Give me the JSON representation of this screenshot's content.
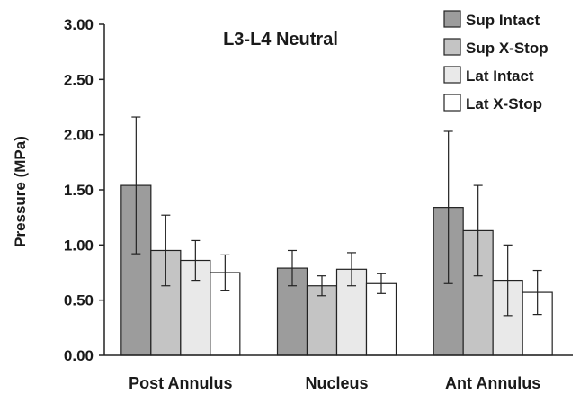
{
  "chart_data": {
    "type": "bar",
    "title": "L3-L4 Neutral",
    "xlabel": "",
    "ylabel": "Pressure (MPa)",
    "ylim": [
      0,
      3
    ],
    "yticks": [
      "0.00",
      "0.50",
      "1.00",
      "1.50",
      "2.00",
      "2.50",
      "3.00"
    ],
    "grid": false,
    "legend_position": "top-right",
    "error_bars": true,
    "categories": [
      "Post Annulus",
      "Nucleus",
      "Ant Annulus"
    ],
    "series": [
      {
        "name": "Sup Intact",
        "color": "#9c9c9c",
        "values": [
          1.54,
          0.79,
          1.34
        ],
        "errors": [
          0.62,
          0.16,
          0.69
        ]
      },
      {
        "name": "Sup X-Stop",
        "color": "#c4c4c4",
        "values": [
          0.95,
          0.63,
          1.13
        ],
        "errors": [
          0.32,
          0.09,
          0.41
        ]
      },
      {
        "name": "Lat Intact",
        "color": "#e9e9e9",
        "values": [
          0.86,
          0.78,
          0.68
        ],
        "errors": [
          0.18,
          0.15,
          0.32
        ]
      },
      {
        "name": "Lat X-Stop",
        "color": "#ffffff",
        "values": [
          0.75,
          0.65,
          0.57
        ],
        "errors": [
          0.16,
          0.09,
          0.2
        ]
      }
    ]
  }
}
